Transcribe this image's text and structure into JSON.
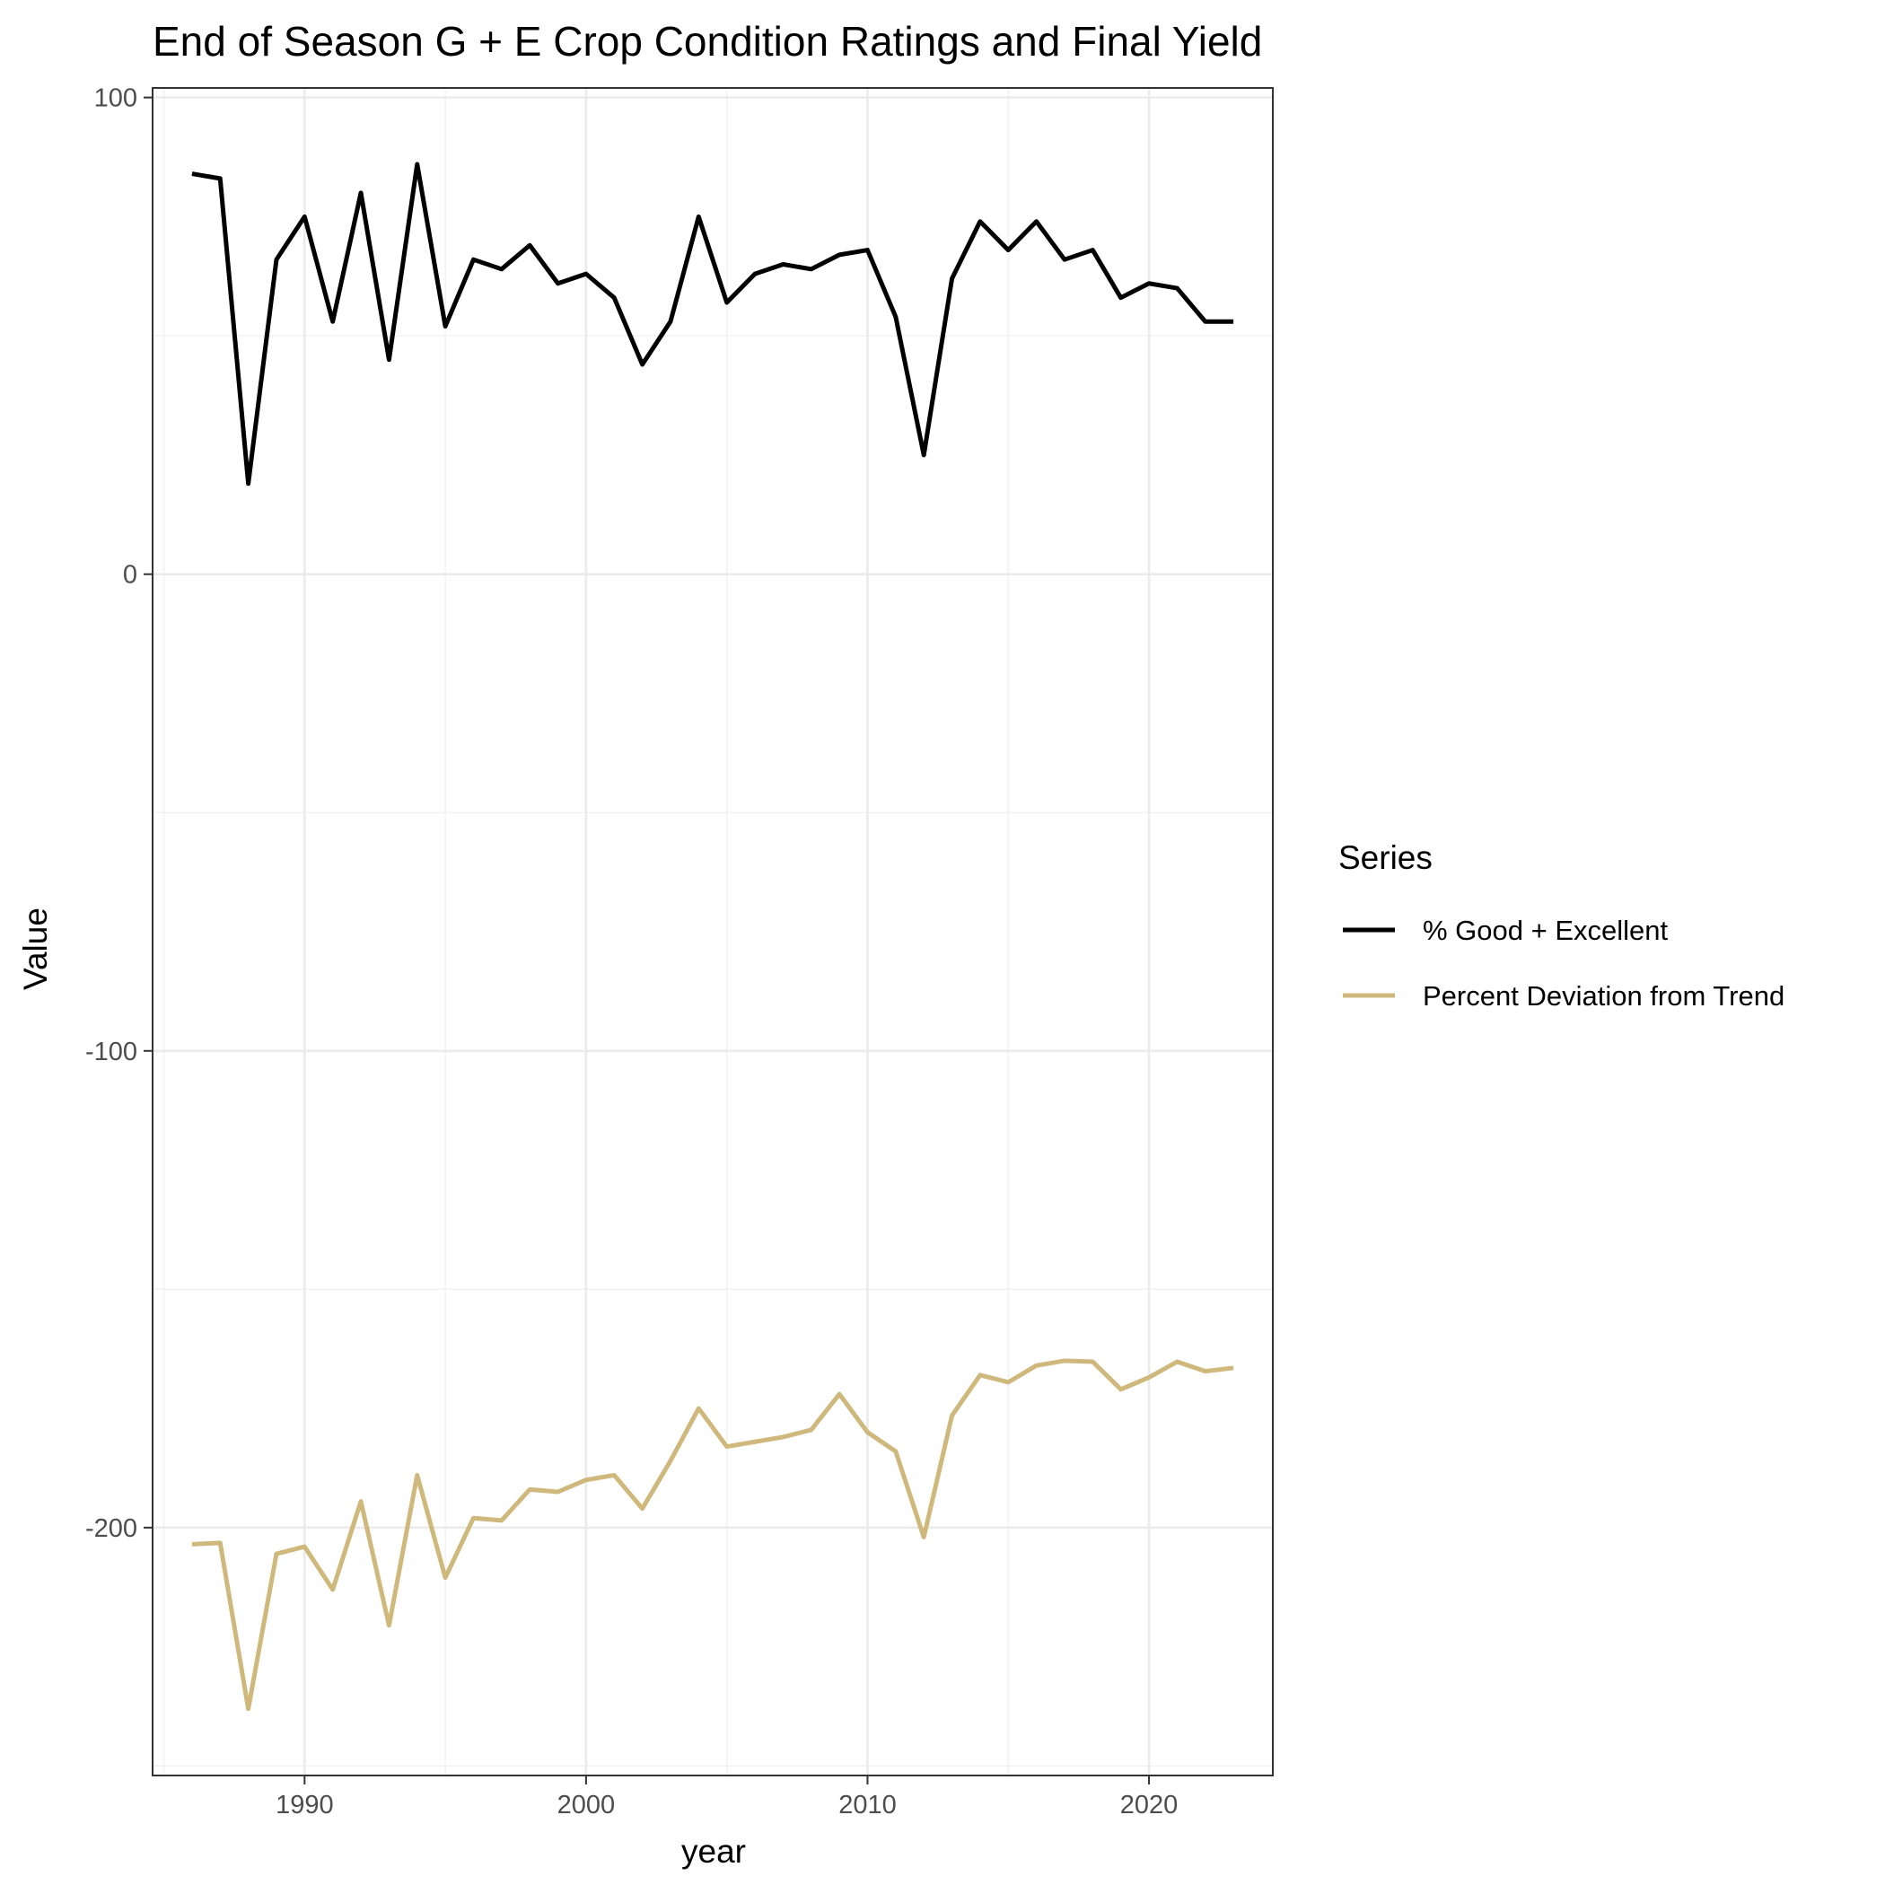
{
  "chart_data": {
    "type": "line",
    "title": "End of Season G + E Crop Condition Ratings and Final Yield",
    "xlabel": "year",
    "ylabel": "Value",
    "xlim": [
      1984.6,
      2024.4
    ],
    "ylim": [
      -252,
      102
    ],
    "x_ticks": [
      1990,
      2000,
      2010,
      2020
    ],
    "x_minor_ticks": [
      1985,
      1995,
      2005,
      2015
    ],
    "y_ticks": [
      -200,
      -100,
      0,
      100
    ],
    "y_minor_ticks": [
      -250,
      -150,
      -50,
      50
    ],
    "grid": true,
    "legend_title": "Series",
    "legend_position": "right",
    "x": [
      1986,
      1987,
      1988,
      1989,
      1990,
      1991,
      1992,
      1993,
      1994,
      1995,
      1996,
      1997,
      1998,
      1999,
      2000,
      2001,
      2002,
      2003,
      2004,
      2005,
      2006,
      2007,
      2008,
      2009,
      2010,
      2011,
      2012,
      2013,
      2014,
      2015,
      2016,
      2017,
      2018,
      2019,
      2020,
      2021,
      2022,
      2023
    ],
    "series": [
      {
        "name": "% Good + Excellent",
        "color": "#000000",
        "values": [
          84,
          83,
          19,
          66,
          75,
          53,
          80,
          45,
          86,
          52,
          66,
          64,
          69,
          61,
          63,
          58,
          44,
          53,
          75,
          57,
          63,
          65,
          64,
          67,
          68,
          54,
          25,
          62,
          74,
          68,
          74,
          66,
          68,
          58,
          61,
          60,
          53,
          53
        ]
      },
      {
        "name": "Percent Deviation from Trend",
        "color": "#cfb87c",
        "values": [
          -203.5,
          -203.2,
          -238,
          -205.5,
          -204,
          -213,
          -194.5,
          -220.5,
          -189,
          -210.5,
          -198,
          -198.5,
          -192,
          -192.5,
          -190,
          -189,
          -196,
          -186,
          -175,
          -183,
          -182,
          -181,
          -179.5,
          -172,
          -180,
          -184,
          -202,
          -176.5,
          -168,
          -169.5,
          -166,
          -165,
          -165.2,
          -171,
          -168.5,
          -165.2,
          -167.2,
          -166.5
        ]
      }
    ]
  }
}
